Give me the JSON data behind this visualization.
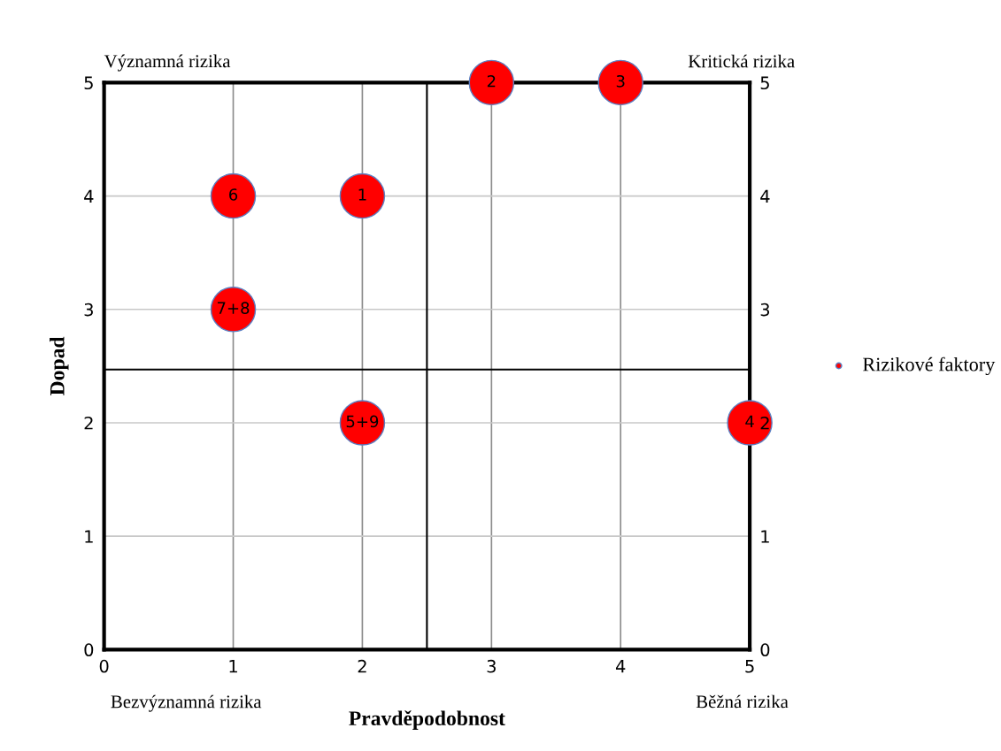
{
  "chart_data": {
    "type": "scatter",
    "xlabel": "Pravděpodobnost",
    "ylabel": "Dopad",
    "x": [
      2,
      3,
      4,
      5,
      2,
      1,
      1
    ],
    "series": [
      {
        "name": "Rizikové faktory",
        "color": "#ff0000",
        "values": [
          4,
          5,
          5,
          2,
          2,
          4,
          3
        ]
      }
    ],
    "xlim": [
      0,
      5
    ],
    "ylim": [
      0,
      5
    ],
    "xticks": [
      0,
      1,
      2,
      3,
      4,
      5
    ],
    "yticks": [
      0,
      1,
      2,
      3,
      4,
      5
    ],
    "y2lim": [
      0,
      5
    ],
    "y2ticks": [
      0,
      1,
      2,
      3,
      4,
      5
    ],
    "ref_lines": [
      {
        "axis": "x",
        "value": 2.5,
        "color": "#000000"
      },
      {
        "axis": "y",
        "value": 2.47,
        "color": "#000000"
      }
    ],
    "annotations": [
      {
        "text": "1",
        "x": 2,
        "y": 4
      },
      {
        "text": "2",
        "x": 3,
        "y": 5
      },
      {
        "text": "3",
        "x": 4,
        "y": 5
      },
      {
        "text": "4",
        "x": 5,
        "y": 2
      },
      {
        "text": "5+9",
        "x": 2,
        "y": 2
      },
      {
        "text": "6",
        "x": 1,
        "y": 4
      },
      {
        "text": "7+8",
        "x": 1,
        "y": 3
      },
      "Významná rizika",
      "Kritická rizika",
      "Bezvýznamná rizika",
      "Běžná rizika"
    ],
    "grid": true,
    "legend": "right",
    "marker": "circle"
  }
}
